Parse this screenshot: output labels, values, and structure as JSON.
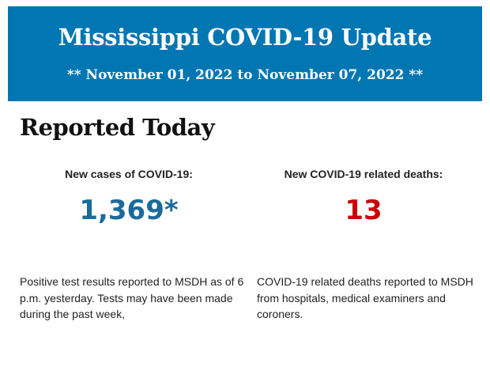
{
  "header": {
    "title": "Mississippi COVID-19 Update",
    "date_range": "** November 01, 2022 to November 07, 2022 **",
    "background_color": "#0076b3"
  },
  "section_title": "Reported Today",
  "cases": {
    "label": "New cases of COVID-19:",
    "value": "1,369*",
    "color": "#1a6b9c",
    "description": "Positive test results reported to MSDH as of 6 p.m. yesterday. Tests may have been made during the past week,"
  },
  "deaths": {
    "label": "New COVID-19 related deaths:",
    "value": "13",
    "color": "#cc0000",
    "description": "COVID-19 related deaths reported to MSDH from hospitals, medical examiners and coroners."
  }
}
